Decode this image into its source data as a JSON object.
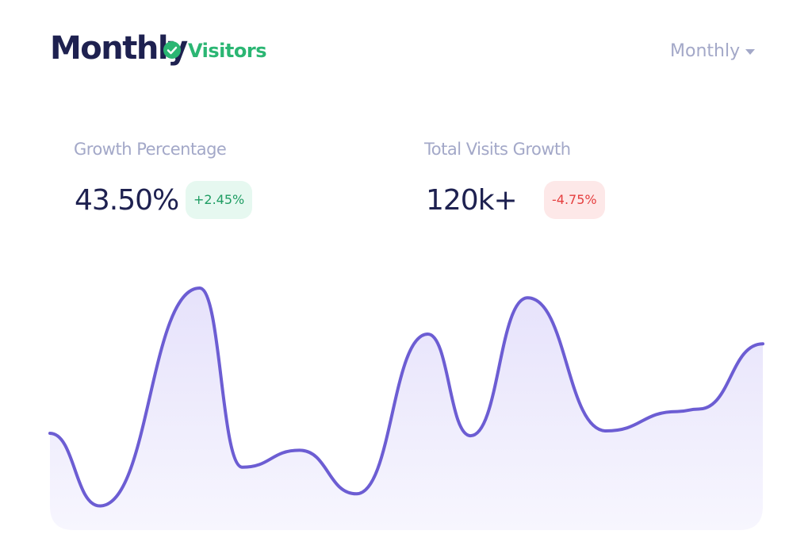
{
  "header": {
    "title": "Monthly",
    "badge": "Visitors",
    "dropdown": "Monthly"
  },
  "stats": [
    {
      "label": "Growth Percentage",
      "value": "43.50%",
      "change": "+2.45%",
      "trend": "up"
    },
    {
      "label": "Total Visits Growth",
      "value": "120k+",
      "change": "-4.75%",
      "trend": "down"
    }
  ],
  "chart_data": {
    "type": "area",
    "color": "#6c5dd3",
    "x": [
      0,
      7,
      21,
      27,
      35,
      43,
      53,
      59,
      67,
      78,
      88,
      91,
      100
    ],
    "values": [
      39,
      9,
      99,
      25,
      32,
      14,
      80,
      38,
      95,
      40,
      48,
      49,
      76
    ],
    "xlim": [
      0,
      100
    ],
    "ylim": [
      0,
      100
    ]
  }
}
